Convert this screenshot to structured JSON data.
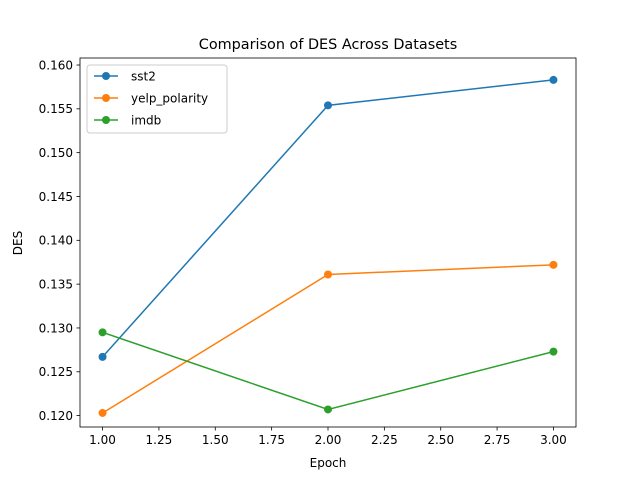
{
  "chart_data": {
    "type": "line",
    "title": "Comparison of DES Across Datasets",
    "xlabel": "Epoch",
    "ylabel": "DES",
    "xlim": [
      0.9,
      3.1
    ],
    "ylim": [
      0.1187,
      0.1608
    ],
    "x_ticks": [
      "1.00",
      "1.25",
      "1.50",
      "1.75",
      "2.00",
      "2.25",
      "2.50",
      "2.75",
      "3.00"
    ],
    "x_tick_values": [
      1.0,
      1.25,
      1.5,
      1.75,
      2.0,
      2.25,
      2.5,
      2.75,
      3.0
    ],
    "y_ticks": [
      "0.120",
      "0.125",
      "0.130",
      "0.135",
      "0.140",
      "0.145",
      "0.150",
      "0.155",
      "0.160"
    ],
    "y_tick_values": [
      0.12,
      0.125,
      0.13,
      0.135,
      0.14,
      0.145,
      0.15,
      0.155,
      0.16
    ],
    "grid": false,
    "legend_position": "top-left",
    "x": [
      1,
      2,
      3
    ],
    "series": [
      {
        "name": "sst2",
        "values": [
          0.1267,
          0.1554,
          0.1583
        ],
        "color": "#1f77b4"
      },
      {
        "name": "yelp_polarity",
        "values": [
          0.1203,
          0.1361,
          0.1372
        ],
        "color": "#ff7f0e"
      },
      {
        "name": "imdb",
        "values": [
          0.1295,
          0.1207,
          0.1273
        ],
        "color": "#2ca02c"
      }
    ]
  }
}
